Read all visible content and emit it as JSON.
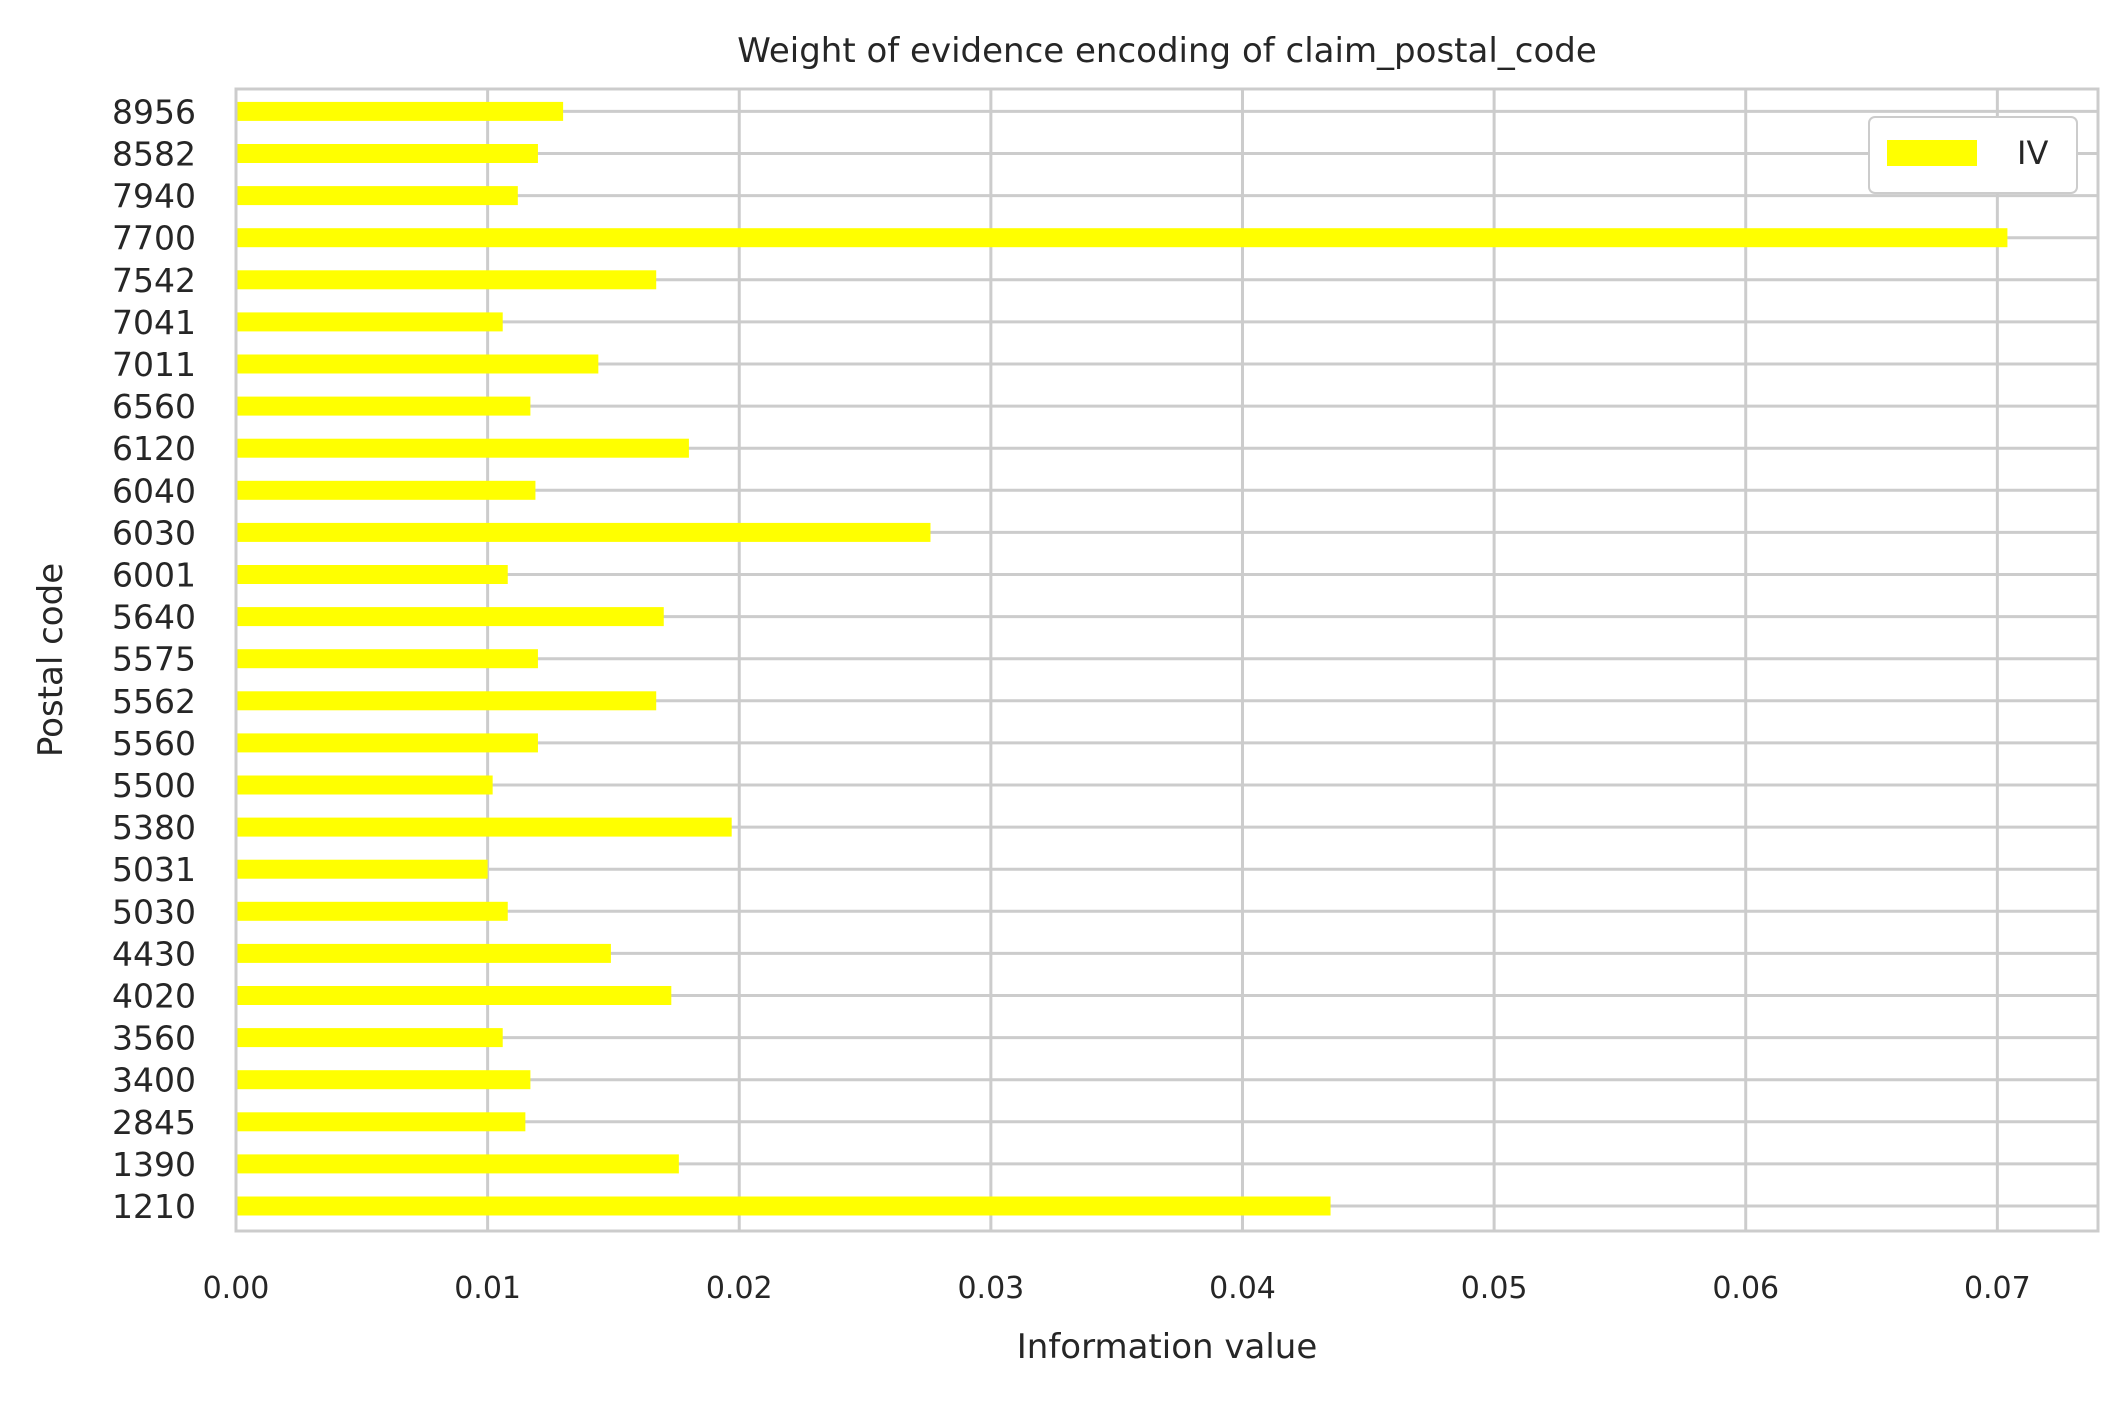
{
  "chart_data": {
    "type": "bar",
    "orientation": "horizontal",
    "title": "Weight of evidence encoding of claim_postal_code",
    "xlabel": "Information value",
    "ylabel": "Postal code",
    "xlim": [
      0.0,
      0.074
    ],
    "xticks": [
      0.0,
      0.01,
      0.02,
      0.03,
      0.04,
      0.05,
      0.06,
      0.07
    ],
    "xtick_labels": [
      "0.00",
      "0.01",
      "0.02",
      "0.03",
      "0.04",
      "0.05",
      "0.06",
      "0.07"
    ],
    "grid": true,
    "legend_position": "top-right",
    "categories": [
      "1210",
      "1390",
      "2845",
      "3400",
      "3560",
      "4020",
      "4430",
      "5030",
      "5031",
      "5380",
      "5500",
      "5560",
      "5562",
      "5575",
      "5640",
      "6001",
      "6030",
      "6040",
      "6120",
      "6560",
      "7011",
      "7041",
      "7542",
      "7700",
      "7940",
      "8582",
      "8956"
    ],
    "series": [
      {
        "name": "IV",
        "color": "#ffff00",
        "values": [
          0.0435,
          0.0176,
          0.0115,
          0.0117,
          0.0106,
          0.0173,
          0.0149,
          0.0108,
          0.01,
          0.0197,
          0.0102,
          0.012,
          0.0167,
          0.012,
          0.017,
          0.0108,
          0.0276,
          0.0119,
          0.018,
          0.0117,
          0.0144,
          0.0106,
          0.0167,
          0.0704,
          0.0112,
          0.012,
          0.013
        ]
      }
    ]
  }
}
